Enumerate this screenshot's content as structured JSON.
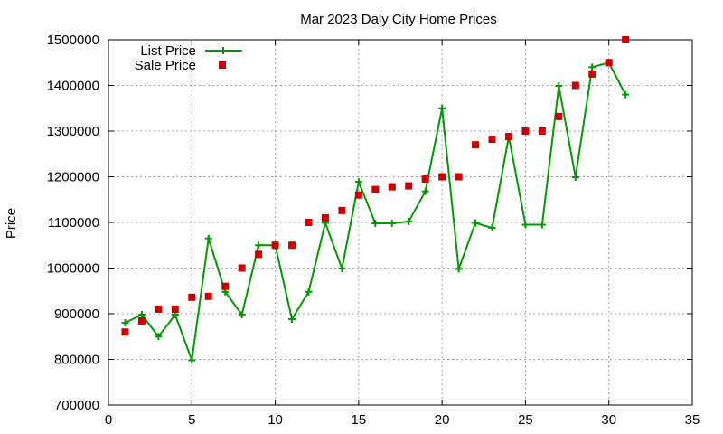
{
  "chart_data": {
    "type": "line",
    "title": "Mar 2023 Daly City Home Prices",
    "xlabel": "",
    "ylabel": "Price",
    "xlim": [
      0,
      35
    ],
    "ylim": [
      700000,
      1500000
    ],
    "xticks": [
      0,
      5,
      10,
      15,
      20,
      25,
      30,
      35
    ],
    "yticks": [
      700000,
      800000,
      900000,
      1000000,
      1100000,
      1200000,
      1300000,
      1400000,
      1500000
    ],
    "grid": true,
    "legend_position": "top-left",
    "series": [
      {
        "name": "List Price",
        "style": "linespoints",
        "color": "#009900",
        "marker": "plus",
        "x": [
          1,
          2,
          3,
          4,
          5,
          6,
          7,
          8,
          9,
          10,
          11,
          12,
          13,
          14,
          15,
          16,
          17,
          18,
          19,
          20,
          21,
          22,
          23,
          24,
          25,
          26,
          27,
          28,
          29,
          30,
          31
        ],
        "values": [
          880000,
          898000,
          850000,
          898000,
          798000,
          1065000,
          948000,
          898000,
          1050000,
          1050000,
          888000,
          948000,
          1099000,
          999000,
          1189000,
          1098000,
          1098000,
          1102000,
          1168000,
          1350000,
          998000,
          1099000,
          1088000,
          1288000,
          1095000,
          1095000,
          1399000,
          1199000,
          1440000,
          1450000,
          1380000
        ]
      },
      {
        "name": "Sale Price",
        "style": "points",
        "color": "#cc0000",
        "marker": "square",
        "x": [
          1,
          2,
          3,
          4,
          5,
          6,
          7,
          8,
          9,
          10,
          11,
          12,
          13,
          14,
          15,
          16,
          17,
          18,
          19,
          20,
          21,
          22,
          23,
          24,
          25,
          26,
          27,
          28,
          29,
          30,
          31
        ],
        "values": [
          860000,
          884000,
          910000,
          910000,
          936000,
          938000,
          960000,
          1000000,
          1030000,
          1050000,
          1050000,
          1100000,
          1110000,
          1126000,
          1160000,
          1172000,
          1178000,
          1180000,
          1195000,
          1200000,
          1200000,
          1270000,
          1282000,
          1288000,
          1300000,
          1300000,
          1332000,
          1400000,
          1425000,
          1450000,
          1500000
        ]
      }
    ]
  }
}
